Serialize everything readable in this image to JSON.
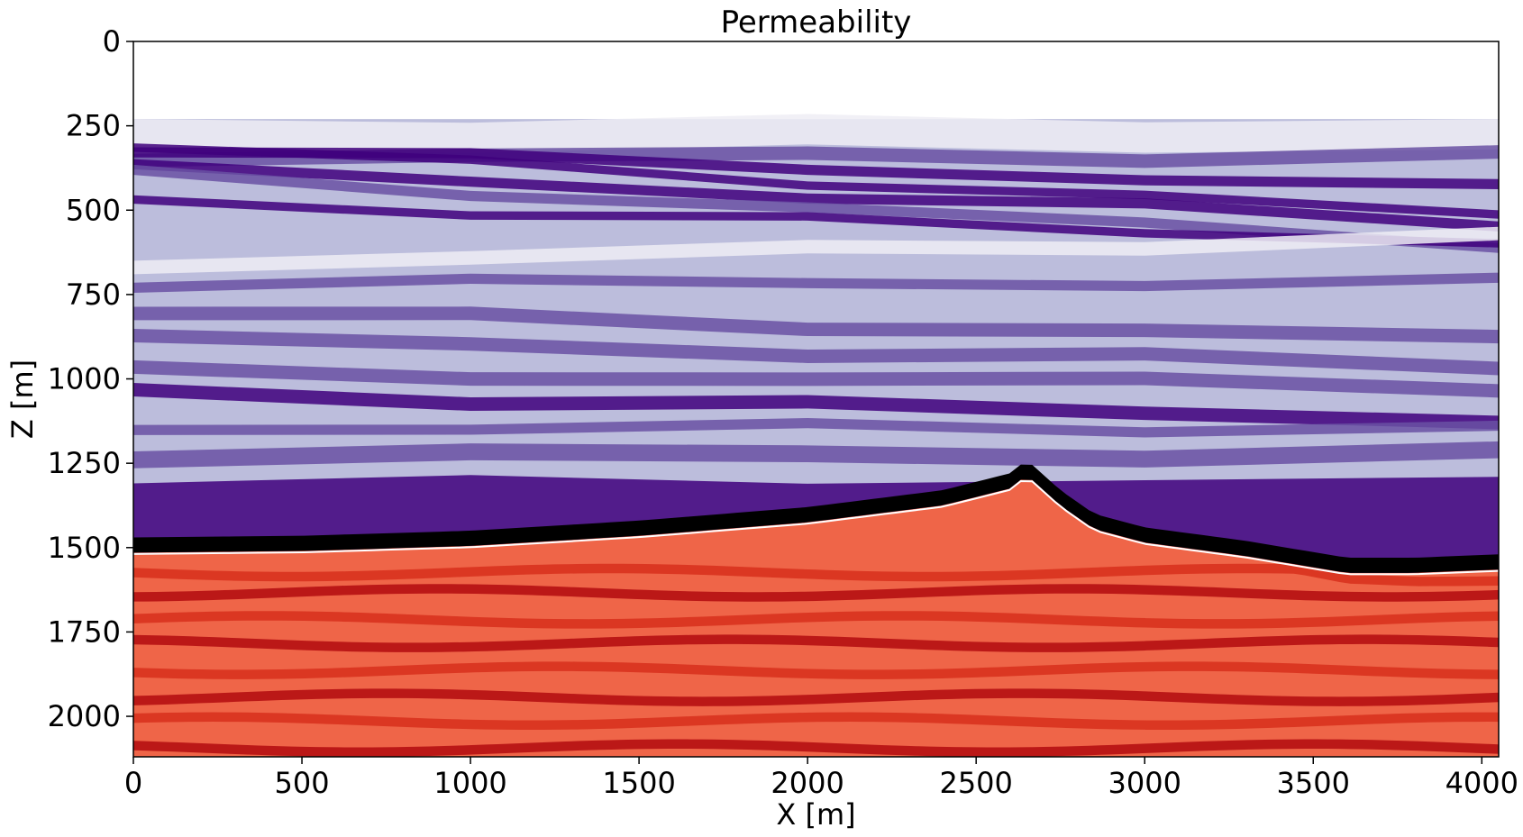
{
  "chart_data": {
    "type": "heatmap",
    "title": "Permeability",
    "xlabel": "X [m]",
    "ylabel": "Z [m]",
    "xlim": [
      0,
      4050
    ],
    "ylim": [
      2120,
      0
    ],
    "y_inverted": true,
    "x_ticks": [
      0,
      500,
      1000,
      1500,
      2000,
      2500,
      3000,
      3500,
      4000
    ],
    "y_ticks": [
      0,
      250,
      500,
      750,
      1000,
      1250,
      1500,
      1750,
      2000
    ],
    "x_tick_labels": [
      "0",
      "500",
      "1000",
      "1500",
      "2000",
      "2500",
      "3000",
      "3500",
      "4000"
    ],
    "y_tick_labels": [
      "0",
      "250",
      "500",
      "750",
      "1000",
      "1250",
      "1500",
      "1750",
      "2000"
    ],
    "grid": false,
    "colormaps": {
      "upper_formation": "Purples",
      "salt_boundary": "black",
      "lower_formation": "Reds"
    },
    "colors": {
      "purple_dark": "#3f007d",
      "purple_mid": "#6a51a3",
      "purple_light": "#bcbddc",
      "purple_pale": "#efedf5",
      "red_dark": "#b50f12",
      "red_mid": "#d8321e",
      "red_light": "#ef6548",
      "boundary": "#000000",
      "water": "#ffffff"
    },
    "features": {
      "water_bottom_depth": 230,
      "boundary_x": [
        0,
        500,
        1000,
        1500,
        2000,
        2400,
        2600,
        2650,
        2750,
        2850,
        3000,
        3300,
        3600,
        3800,
        4050
      ],
      "boundary_top_z": [
        1470,
        1465,
        1450,
        1420,
        1380,
        1330,
        1280,
        1240,
        1330,
        1400,
        1440,
        1480,
        1530,
        1530,
        1520
      ],
      "boundary_thickness": 45
    }
  }
}
